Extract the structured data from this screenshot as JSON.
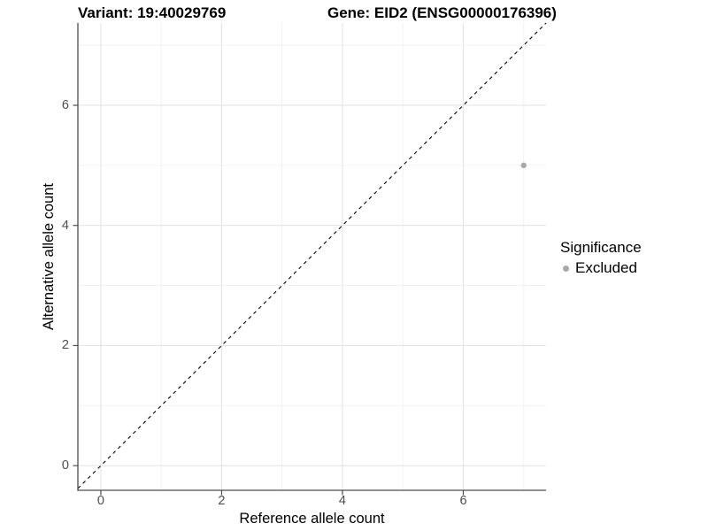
{
  "header": {
    "variant_title": "Variant: 19:40029769",
    "gene_title": "Gene: EID2 (ENSG00000176396)"
  },
  "chart_data": {
    "type": "scatter",
    "xlabel": "Reference allele count",
    "ylabel": "Alternative allele count",
    "xlim": [
      -0.38,
      7.37
    ],
    "ylim": [
      -0.41,
      7.37
    ],
    "x_major_ticks": [
      0,
      2,
      4,
      6
    ],
    "y_major_ticks": [
      0,
      2,
      4,
      6
    ],
    "x_minor_gridlines": [
      1,
      3,
      5,
      7
    ],
    "y_minor_gridlines": [
      1,
      3,
      5,
      7
    ],
    "grid": "major and minor gridlines on white panel",
    "identity_line": {
      "equation": "y = x",
      "style": "dashed",
      "color": "#000000"
    },
    "series": [
      {
        "name": "Excluded",
        "color": "#a8a8a8",
        "points": [
          {
            "x": 7,
            "y": 5
          }
        ]
      }
    ],
    "legend": {
      "title": "Significance",
      "position": "right",
      "entries": [
        {
          "label": "Excluded",
          "color": "#a8a8a8"
        }
      ]
    }
  },
  "colors": {
    "background": "#ffffff",
    "major_gridline": "#e4e4e4",
    "minor_gridline": "#f1f1f1",
    "axis_line": "#4d4d4d",
    "tick_text": "#4d4d4d",
    "title_text": "#000000",
    "excluded_point": "#a8a8a8"
  }
}
